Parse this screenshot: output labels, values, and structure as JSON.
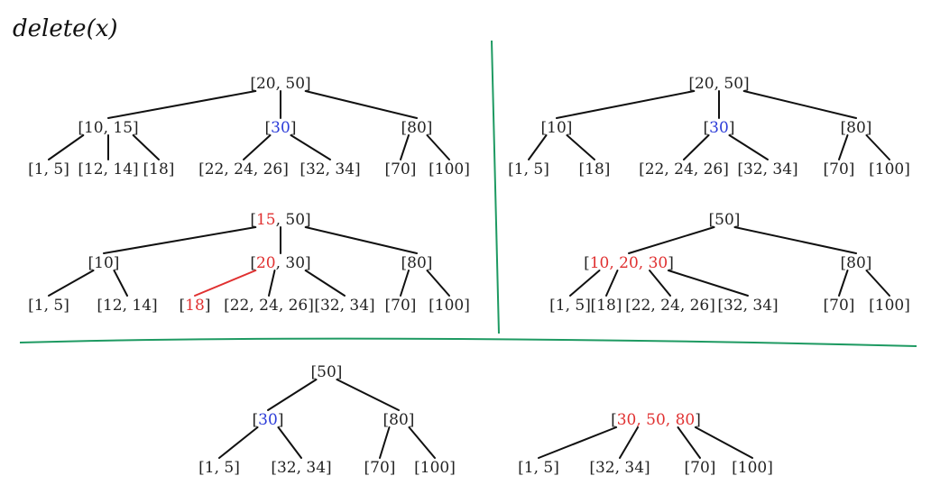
{
  "title": "delete(x)",
  "colors": {
    "default": "#222222",
    "red": "#e03030",
    "blue": "#2b3bd8",
    "divider": "#1e9a62"
  },
  "trees": [
    {
      "id": "tree-top-left",
      "nodes": [
        {
          "id": "a1",
          "parts": [
            {
              "t": "[20, 50]"
            }
          ]
        },
        {
          "id": "a2",
          "parts": [
            {
              "t": "[10, 15]"
            }
          ]
        },
        {
          "id": "a3",
          "parts": [
            {
              "t": "["
            },
            {
              "t": "30",
              "c": "blue"
            },
            {
              "t": "]"
            }
          ]
        },
        {
          "id": "a4",
          "parts": [
            {
              "t": "[80]"
            }
          ]
        },
        {
          "id": "a5",
          "parts": [
            {
              "t": "[1, 5]"
            }
          ]
        },
        {
          "id": "a6",
          "parts": [
            {
              "t": "[12, 14]"
            }
          ]
        },
        {
          "id": "a7",
          "parts": [
            {
              "t": "[18]"
            }
          ]
        },
        {
          "id": "a8",
          "parts": [
            {
              "t": "[22, 24, 26]"
            }
          ]
        },
        {
          "id": "a9",
          "parts": [
            {
              "t": "[32, 34]"
            }
          ]
        },
        {
          "id": "a10",
          "parts": [
            {
              "t": "[70]"
            }
          ]
        },
        {
          "id": "a11",
          "parts": [
            {
              "t": "[100]"
            }
          ]
        }
      ],
      "edges": [
        [
          "a1",
          "a2"
        ],
        [
          "a1",
          "a3"
        ],
        [
          "a1",
          "a4"
        ],
        [
          "a2",
          "a5"
        ],
        [
          "a2",
          "a6"
        ],
        [
          "a2",
          "a7"
        ],
        [
          "a3",
          "a8"
        ],
        [
          "a3",
          "a9"
        ],
        [
          "a4",
          "a10"
        ],
        [
          "a4",
          "a11"
        ]
      ]
    },
    {
      "id": "tree-top-right",
      "nodes": [
        {
          "id": "b1",
          "parts": [
            {
              "t": "[20, 50]"
            }
          ]
        },
        {
          "id": "b2",
          "parts": [
            {
              "t": "[10]"
            }
          ]
        },
        {
          "id": "b3",
          "parts": [
            {
              "t": "["
            },
            {
              "t": "30",
              "c": "blue"
            },
            {
              "t": "]"
            }
          ]
        },
        {
          "id": "b4",
          "parts": [
            {
              "t": "[80]"
            }
          ]
        },
        {
          "id": "b5",
          "parts": [
            {
              "t": "[1, 5]"
            }
          ]
        },
        {
          "id": "b6",
          "parts": [
            {
              "t": "[18]"
            }
          ]
        },
        {
          "id": "b7",
          "parts": [
            {
              "t": "[22, 24, 26]"
            }
          ]
        },
        {
          "id": "b8",
          "parts": [
            {
              "t": "[32, 34]"
            }
          ]
        },
        {
          "id": "b9",
          "parts": [
            {
              "t": "[70]"
            }
          ]
        },
        {
          "id": "b10",
          "parts": [
            {
              "t": "[100]"
            }
          ]
        }
      ],
      "edges": [
        [
          "b1",
          "b2"
        ],
        [
          "b1",
          "b3"
        ],
        [
          "b1",
          "b4"
        ],
        [
          "b2",
          "b5"
        ],
        [
          "b2",
          "b6"
        ],
        [
          "b3",
          "b7"
        ],
        [
          "b3",
          "b8"
        ],
        [
          "b4",
          "b9"
        ],
        [
          "b4",
          "b10"
        ]
      ]
    },
    {
      "id": "tree-middle-left",
      "nodes": [
        {
          "id": "c1",
          "parts": [
            {
              "t": "["
            },
            {
              "t": "15",
              "c": "red"
            },
            {
              "t": ", 50]"
            }
          ]
        },
        {
          "id": "c2",
          "parts": [
            {
              "t": "[10]"
            }
          ]
        },
        {
          "id": "c3",
          "parts": [
            {
              "t": "["
            },
            {
              "t": "20",
              "c": "red"
            },
            {
              "t": ", 30]"
            }
          ]
        },
        {
          "id": "c4",
          "parts": [
            {
              "t": "[80]"
            }
          ]
        },
        {
          "id": "c5",
          "parts": [
            {
              "t": "[1, 5]"
            }
          ]
        },
        {
          "id": "c6",
          "parts": [
            {
              "t": "[12, 14]"
            }
          ]
        },
        {
          "id": "c7",
          "parts": [
            {
              "t": "["
            },
            {
              "t": "18",
              "c": "red"
            },
            {
              "t": "]"
            }
          ]
        },
        {
          "id": "c8",
          "parts": [
            {
              "t": "[22, 24, 26]"
            }
          ]
        },
        {
          "id": "c9",
          "parts": [
            {
              "t": "[32, 34]"
            }
          ]
        },
        {
          "id": "c10",
          "parts": [
            {
              "t": "[70]"
            }
          ]
        },
        {
          "id": "c11",
          "parts": [
            {
              "t": "[100]"
            }
          ]
        }
      ],
      "edges": [
        [
          "c1",
          "c2"
        ],
        [
          "c1",
          "c3"
        ],
        [
          "c1",
          "c4"
        ],
        [
          "c2",
          "c5"
        ],
        [
          "c2",
          "c6"
        ],
        [
          "c3",
          "c7",
          "red"
        ],
        [
          "c3",
          "c8"
        ],
        [
          "c3",
          "c9"
        ],
        [
          "c4",
          "c10"
        ],
        [
          "c4",
          "c11"
        ]
      ]
    },
    {
      "id": "tree-middle-right",
      "nodes": [
        {
          "id": "d1",
          "parts": [
            {
              "t": "[50]"
            }
          ]
        },
        {
          "id": "d2",
          "parts": [
            {
              "t": "["
            },
            {
              "t": "10, 20, 30",
              "c": "red"
            },
            {
              "t": "]"
            }
          ]
        },
        {
          "id": "d3",
          "parts": [
            {
              "t": "[80]"
            }
          ]
        },
        {
          "id": "d4",
          "parts": [
            {
              "t": "[1, 5]"
            }
          ]
        },
        {
          "id": "d5",
          "parts": [
            {
              "t": "[18]"
            }
          ]
        },
        {
          "id": "d6",
          "parts": [
            {
              "t": "[22, 24, 26]"
            }
          ]
        },
        {
          "id": "d7",
          "parts": [
            {
              "t": "[32, 34]"
            }
          ]
        },
        {
          "id": "d8",
          "parts": [
            {
              "t": "[70]"
            }
          ]
        },
        {
          "id": "d9",
          "parts": [
            {
              "t": "[100]"
            }
          ]
        }
      ],
      "edges": [
        [
          "d1",
          "d2"
        ],
        [
          "d1",
          "d3"
        ],
        [
          "d2",
          "d4"
        ],
        [
          "d2",
          "d5"
        ],
        [
          "d2",
          "d6"
        ],
        [
          "d2",
          "d7"
        ],
        [
          "d3",
          "d8"
        ],
        [
          "d3",
          "d9"
        ]
      ]
    },
    {
      "id": "tree-bottom-left",
      "nodes": [
        {
          "id": "e1",
          "parts": [
            {
              "t": "[50]"
            }
          ]
        },
        {
          "id": "e2",
          "parts": [
            {
              "t": "["
            },
            {
              "t": "30",
              "c": "blue"
            },
            {
              "t": "]"
            }
          ]
        },
        {
          "id": "e3",
          "parts": [
            {
              "t": "[80]"
            }
          ]
        },
        {
          "id": "e4",
          "parts": [
            {
              "t": "[1, 5]"
            }
          ]
        },
        {
          "id": "e5",
          "parts": [
            {
              "t": "[32, 34]"
            }
          ]
        },
        {
          "id": "e6",
          "parts": [
            {
              "t": "[70]"
            }
          ]
        },
        {
          "id": "e7",
          "parts": [
            {
              "t": "[100]"
            }
          ]
        }
      ],
      "edges": [
        [
          "e1",
          "e2"
        ],
        [
          "e1",
          "e3"
        ],
        [
          "e2",
          "e4"
        ],
        [
          "e2",
          "e5"
        ],
        [
          "e3",
          "e6"
        ],
        [
          "e3",
          "e7"
        ]
      ]
    },
    {
      "id": "tree-bottom-right",
      "nodes": [
        {
          "id": "f1",
          "parts": [
            {
              "t": "["
            },
            {
              "t": "30, 50, 80",
              "c": "red"
            },
            {
              "t": "]"
            }
          ]
        },
        {
          "id": "f2",
          "parts": [
            {
              "t": "[1, 5]"
            }
          ]
        },
        {
          "id": "f3",
          "parts": [
            {
              "t": "[32, 34]"
            }
          ]
        },
        {
          "id": "f4",
          "parts": [
            {
              "t": "[70]"
            }
          ]
        },
        {
          "id": "f5",
          "parts": [
            {
              "t": "[100]"
            }
          ]
        }
      ],
      "edges": [
        [
          "f1",
          "f2"
        ],
        [
          "f1",
          "f3"
        ],
        [
          "f1",
          "f4"
        ],
        [
          "f1",
          "f5"
        ]
      ]
    }
  ]
}
